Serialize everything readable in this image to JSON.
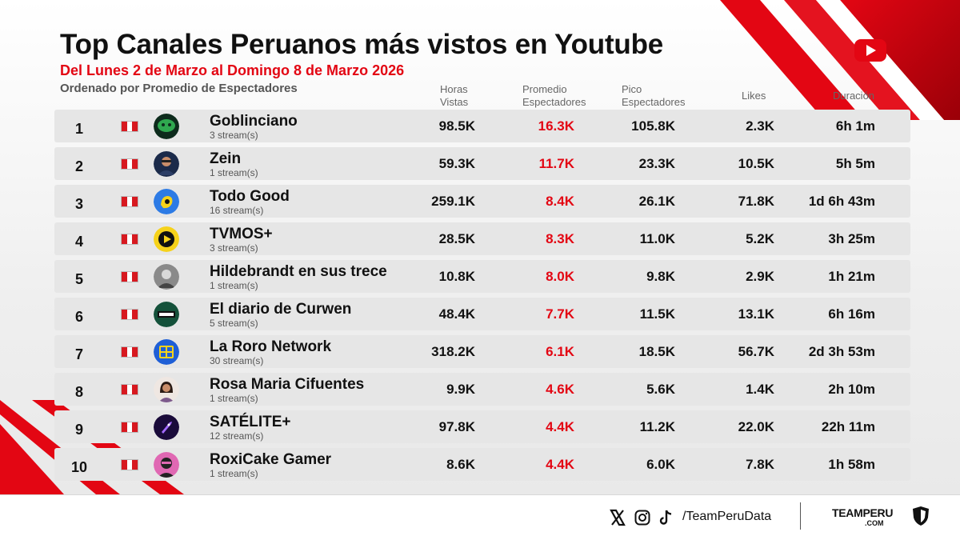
{
  "header": {
    "title": "Top Canales Peruanos más vistos en Youtube",
    "subtitle": "Del Lunes 2 de Marzo al Domingo 8 de Marzo 2026",
    "sort_note": "Ordenado por Promedio de Espectadores"
  },
  "columns": {
    "horas": [
      "Horas",
      "Vistas"
    ],
    "promedio": [
      "Promedio",
      "Espectadores"
    ],
    "pico": [
      "Pico",
      "Espectadores"
    ],
    "likes": "Likes",
    "duracion": "Duración"
  },
  "colors": {
    "accent": "#e30613",
    "flag_red": "#d71920",
    "text": "#111111"
  },
  "chart_data": {
    "type": "table",
    "title": "Top Canales Peruanos más vistos en Youtube",
    "columns": [
      "Horas Vistas",
      "Promedio Espectadores",
      "Pico Espectadores",
      "Likes",
      "Duración"
    ],
    "rows": [
      {
        "rank": "1",
        "name": "Goblinciano",
        "streams": "3 stream(s)",
        "horas": "98.5K",
        "promedio": "16.3K",
        "pico": "105.8K",
        "likes": "2.3K",
        "duracion": "6h 1m",
        "avatar": "goblin-avatar"
      },
      {
        "rank": "2",
        "name": "Zein",
        "streams": "1 stream(s)",
        "horas": "59.3K",
        "promedio": "11.7K",
        "pico": "23.3K",
        "likes": "10.5K",
        "duracion": "5h 5m",
        "avatar": "person-avatar"
      },
      {
        "rank": "3",
        "name": "Todo Good",
        "streams": "16 stream(s)",
        "horas": "259.1K",
        "promedio": "8.4K",
        "pico": "26.1K",
        "likes": "71.8K",
        "duracion": "1d 6h 43m",
        "avatar": "hand-logo-avatar"
      },
      {
        "rank": "4",
        "name": "TVMOS+",
        "streams": "3 stream(s)",
        "horas": "28.5K",
        "promedio": "8.3K",
        "pico": "11.0K",
        "likes": "5.2K",
        "duracion": "3h 25m",
        "avatar": "play-logo-avatar"
      },
      {
        "rank": "5",
        "name": "Hildebrandt en sus trece",
        "streams": "1 stream(s)",
        "horas": "10.8K",
        "promedio": "8.0K",
        "pico": "9.8K",
        "likes": "2.9K",
        "duracion": "1h 21m",
        "avatar": "bw-person-avatar"
      },
      {
        "rank": "6",
        "name": "El diario de Curwen",
        "streams": "5 stream(s)",
        "horas": "48.4K",
        "promedio": "7.7K",
        "pico": "11.5K",
        "likes": "13.1K",
        "duracion": "6h 16m",
        "avatar": "curwen-logo-avatar"
      },
      {
        "rank": "7",
        "name": "La Roro Network",
        "streams": "30 stream(s)",
        "horas": "318.2K",
        "promedio": "6.1K",
        "pico": "18.5K",
        "likes": "56.7K",
        "duracion": "2d 3h 53m",
        "avatar": "roro-logo-avatar"
      },
      {
        "rank": "8",
        "name": "Rosa Maria Cifuentes",
        "streams": "1 stream(s)",
        "horas": "9.9K",
        "promedio": "4.6K",
        "pico": "5.6K",
        "likes": "1.4K",
        "duracion": "2h 10m",
        "avatar": "woman-avatar"
      },
      {
        "rank": "9",
        "name": "SATÉLITE+",
        "streams": "12 stream(s)",
        "horas": "97.8K",
        "promedio": "4.4K",
        "pico": "11.2K",
        "likes": "22.0K",
        "duracion": "22h 11m",
        "avatar": "rocket-logo-avatar"
      },
      {
        "rank": "10",
        "name": "RoxiCake Gamer",
        "streams": "1 stream(s)",
        "horas": "8.6K",
        "promedio": "4.4K",
        "pico": "6.0K",
        "likes": "7.8K",
        "duracion": "1h 58m",
        "avatar": "gamer-avatar"
      }
    ]
  },
  "footer": {
    "handle": "/TeamPeruData",
    "brand": "TEAMPERU",
    "brand_sub": ".COM",
    "icons": [
      "x-icon",
      "instagram-icon",
      "tiktok-icon"
    ]
  }
}
